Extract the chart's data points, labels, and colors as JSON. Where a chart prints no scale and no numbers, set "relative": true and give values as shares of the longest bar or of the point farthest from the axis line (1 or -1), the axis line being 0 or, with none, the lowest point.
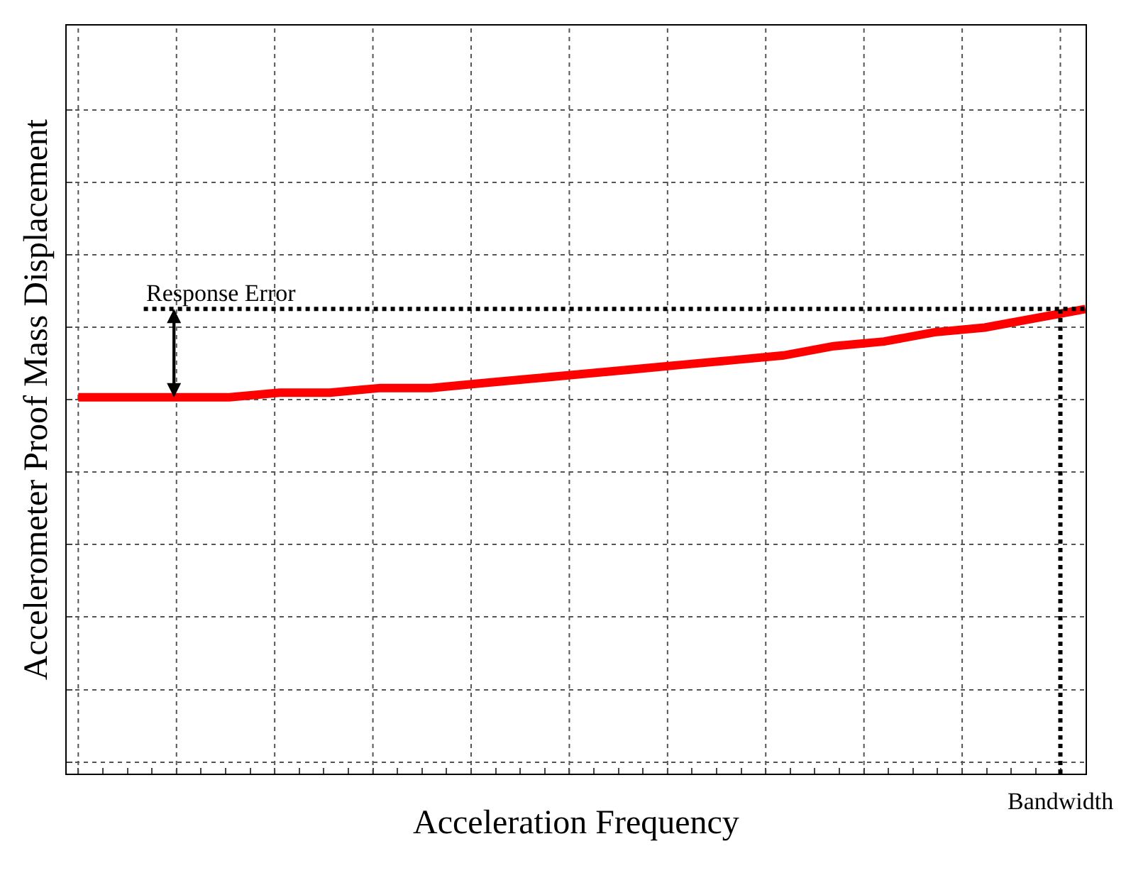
{
  "chart_data": {
    "type": "line",
    "relative": true,
    "xlabel": "Acceleration Frequency",
    "ylabel": "Accelerometer Proof Mass Displacement",
    "categories": [
      null,
      null,
      null,
      null,
      null,
      null,
      null,
      null,
      null,
      null,
      null,
      null,
      null,
      null,
      null,
      null,
      null,
      null,
      null,
      null,
      null
    ],
    "series": [
      {
        "color": "#ff0000",
        "values": [
          0.81,
          0.81,
          0.81,
          0.81,
          0.82,
          0.82,
          0.83,
          0.83,
          0.84,
          0.85,
          0.86,
          0.87,
          0.88,
          0.89,
          0.9,
          0.92,
          0.93,
          0.95,
          0.96,
          0.98,
          1.0
        ]
      }
    ],
    "ref_lines": [
      {
        "axis": "y",
        "value": 1.0,
        "label": "Response Error",
        "color": "#000000",
        "line_style": "dotted"
      }
    ],
    "annotations": [
      "Bandwidth"
    ],
    "grid": true,
    "marker": "none",
    "line_style": "solid"
  }
}
